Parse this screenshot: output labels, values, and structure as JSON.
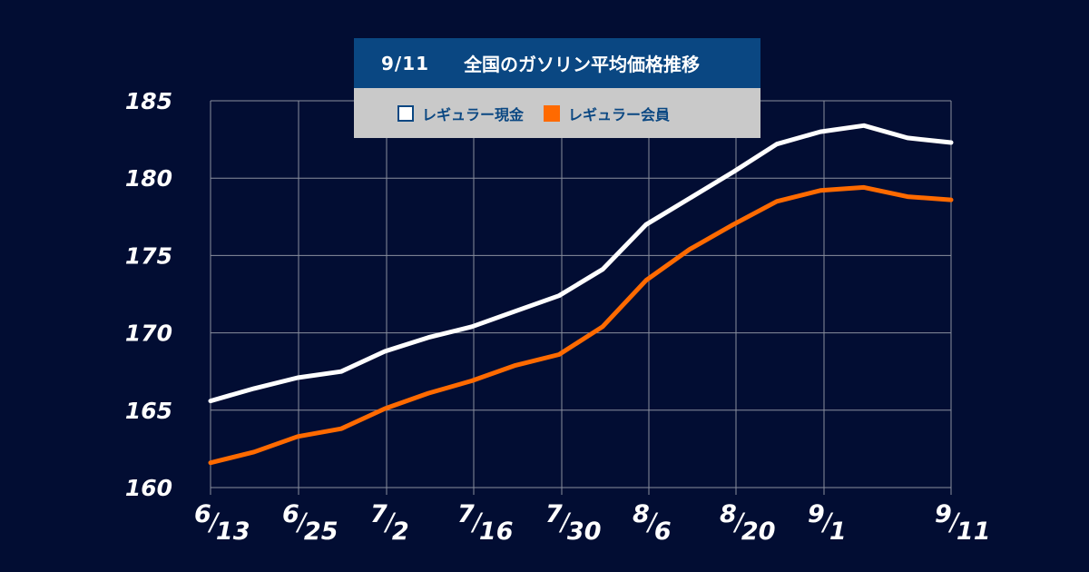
{
  "title_date": "9/11",
  "title_text": "全国のガソリン平均価格推移",
  "chart_data": {
    "type": "line",
    "title": "9/11　全国のガソリン平均価格推移",
    "xlabel": "",
    "ylabel": "",
    "ylim": [
      160,
      185
    ],
    "yticks": [
      160,
      165,
      170,
      175,
      180,
      185
    ],
    "grid": true,
    "legend_position": "top-center",
    "x_ticks": [
      {
        "main": "6",
        "sub": "13"
      },
      {
        "main": "6",
        "sub": "25"
      },
      {
        "main": "7",
        "sub": "2"
      },
      {
        "main": "7",
        "sub": "16"
      },
      {
        "main": "7",
        "sub": "30"
      },
      {
        "main": "8",
        "sub": "6"
      },
      {
        "main": "8",
        "sub": "20"
      },
      {
        "main": "9",
        "sub": "1"
      },
      {
        "main": "9",
        "sub": "11"
      }
    ],
    "series": [
      {
        "name": "レギュラー現金",
        "color": "#ffffff",
        "values": [
          165.6,
          166.4,
          167.1,
          167.5,
          168.8,
          169.7,
          170.4,
          171.4,
          172.4,
          174.1,
          177.0,
          178.7,
          180.4,
          182.2,
          183.0,
          183.4,
          182.6,
          182.3
        ]
      },
      {
        "name": "レギュラー会員",
        "color": "#ff6a00",
        "values": [
          161.6,
          162.3,
          163.3,
          163.8,
          165.1,
          166.1,
          166.9,
          167.9,
          168.6,
          170.4,
          173.4,
          175.4,
          177.0,
          178.5,
          179.2,
          179.4,
          178.8,
          178.6
        ]
      }
    ]
  }
}
